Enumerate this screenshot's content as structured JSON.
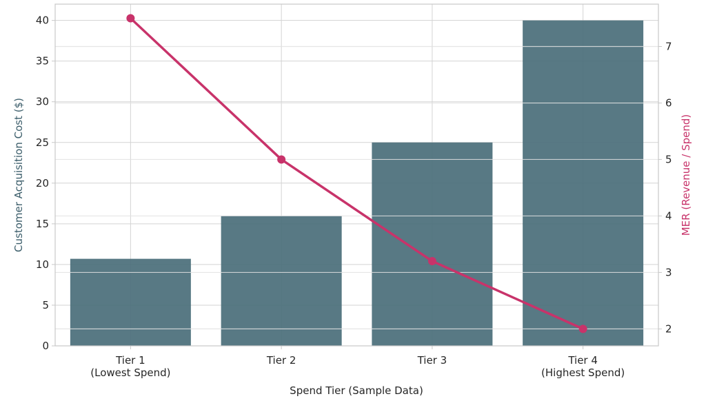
{
  "chart_data": {
    "type": "bar",
    "categories": [
      [
        "Tier 1",
        "(Lowest Spend)"
      ],
      [
        "Tier 2"
      ],
      [
        "Tier 3"
      ],
      [
        "Tier 4",
        "(Highest Spend)"
      ]
    ],
    "xlabel": "Spend Tier (Sample Data)",
    "series": [
      {
        "type": "bar",
        "axis": "left",
        "values": [
          10.7,
          16.0,
          25.0,
          40.0
        ],
        "color": "#4a6e7a"
      },
      {
        "type": "line",
        "axis": "right",
        "values": [
          7.5,
          5.0,
          3.2,
          2.0
        ],
        "color": "#c8336a"
      }
    ],
    "ylabel_left": "Customer Acquisition Cost ($)",
    "ylabel_right": "MER (Revenue / Spend)",
    "ylim_left": [
      0,
      42
    ],
    "ylim_right": [
      1.7,
      7.75
    ],
    "yticks_left": [
      0,
      5,
      10,
      15,
      20,
      25,
      30,
      35,
      40
    ],
    "yticks_right": [
      2,
      3,
      4,
      5,
      6,
      7
    ],
    "grid": true,
    "colors": {
      "bar": "#4a6e7a",
      "line": "#c8336a",
      "left_axis_label": "#3b5d6a",
      "right_axis_label": "#c8336a",
      "grid": "#d3d3d3",
      "frame": "#c8c8c8"
    }
  }
}
